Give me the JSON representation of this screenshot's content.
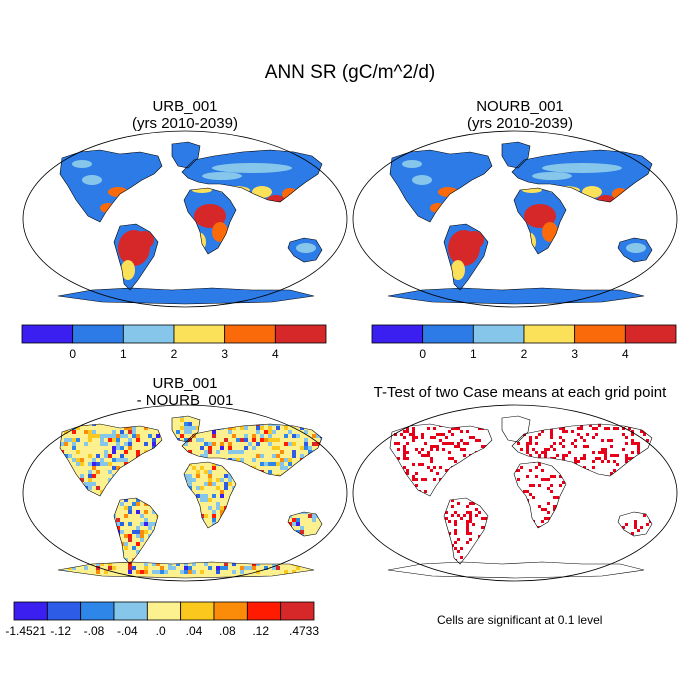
{
  "figure": {
    "title": "ANN SR (gC/m^2/d)"
  },
  "panels": [
    {
      "id": "urb",
      "title_line1": "URB_001",
      "title_line2": "(yrs 2010-2039)",
      "map_kind": "absolute"
    },
    {
      "id": "nourb",
      "title_line1": "NOURB_001",
      "title_line2": "(yrs 2010-2039)",
      "map_kind": "absolute"
    },
    {
      "id": "diff",
      "title_line1": "URB_001",
      "title_line2": "- NOURB_001",
      "map_kind": "difference"
    },
    {
      "id": "ttest",
      "title_line1": "T-Test of two Case means at each grid point",
      "title_line2": "",
      "map_kind": "significance"
    }
  ],
  "colorbars": {
    "absolute": {
      "colors": [
        "#3b1ef0",
        "#2d7be6",
        "#86c6ea",
        "#fbe05a",
        "#fb6a0a",
        "#d62828"
      ],
      "tick_labels": [
        "0",
        "1",
        "2",
        "3",
        "4"
      ]
    },
    "difference": {
      "colors": [
        "#3b1ef0",
        "#2d5ce6",
        "#2d86e8",
        "#86c6ea",
        "#fdf08f",
        "#fbc81e",
        "#fb8c0a",
        "#ff1b00",
        "#d62828"
      ],
      "tick_labels": [
        "-1.4521",
        "-.12",
        "-.08",
        "-.04",
        ".0",
        ".04",
        ".08",
        ".12",
        ".4733"
      ]
    }
  },
  "significance_note": "Cells are significant at 0.1 level",
  "colors": {
    "land_default": "#2d7be6",
    "ocean": "#ffffff",
    "significant": "#e8001a",
    "outline": "#000000"
  }
}
